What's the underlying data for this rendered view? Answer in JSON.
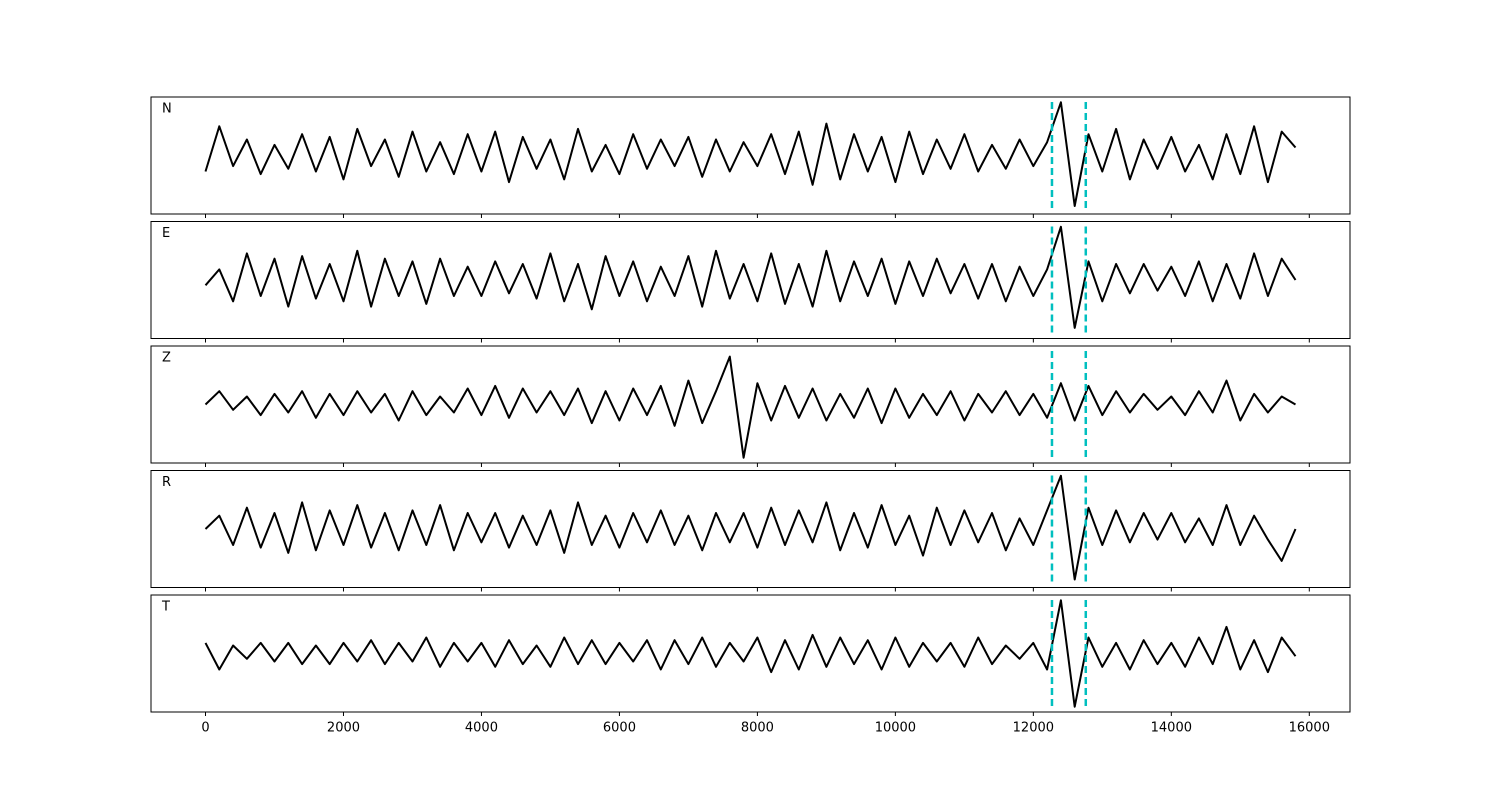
{
  "chart_data": {
    "type": "line",
    "layout": "stacked",
    "x": [
      0,
      200,
      400,
      600,
      800,
      1000,
      1200,
      1400,
      1600,
      1800,
      2000,
      2200,
      2400,
      2600,
      2800,
      3000,
      3200,
      3400,
      3600,
      3800,
      4000,
      4200,
      4400,
      4600,
      4800,
      5000,
      5200,
      5400,
      5600,
      5800,
      6000,
      6200,
      6400,
      6600,
      6800,
      7000,
      7200,
      7400,
      7600,
      7800,
      8000,
      8200,
      8400,
      8600,
      8800,
      9000,
      9200,
      9400,
      9600,
      9800,
      10000,
      10200,
      10400,
      10600,
      10800,
      11000,
      11200,
      11400,
      11600,
      11800,
      12000,
      12200,
      12400,
      12600,
      12800,
      13000,
      13200,
      13400,
      13600,
      13800,
      14000,
      14200,
      14400,
      14600,
      14800,
      15000,
      15200,
      15400,
      15600,
      15800
    ],
    "series": [
      {
        "name": "N",
        "values": [
          -0.3,
          0.55,
          -0.2,
          0.3,
          -0.35,
          0.2,
          -0.25,
          0.4,
          -0.3,
          0.35,
          -0.45,
          0.5,
          -0.2,
          0.3,
          -0.4,
          0.45,
          -0.3,
          0.25,
          -0.35,
          0.4,
          -0.3,
          0.45,
          -0.5,
          0.35,
          -0.25,
          0.3,
          -0.45,
          0.5,
          -0.3,
          0.2,
          -0.35,
          0.4,
          -0.25,
          0.3,
          -0.2,
          0.35,
          -0.4,
          0.3,
          -0.3,
          0.25,
          -0.2,
          0.4,
          -0.35,
          0.45,
          -0.55,
          0.6,
          -0.45,
          0.4,
          -0.3,
          0.35,
          -0.5,
          0.45,
          -0.35,
          0.3,
          -0.25,
          0.4,
          -0.3,
          0.2,
          -0.25,
          0.3,
          -0.2,
          0.25,
          1.0,
          -0.95,
          0.4,
          -0.3,
          0.5,
          -0.45,
          0.3,
          -0.25,
          0.35,
          -0.3,
          0.2,
          -0.45,
          0.4,
          -0.35,
          0.55,
          -0.5,
          0.45,
          0.15
        ]
      },
      {
        "name": "E",
        "values": [
          -0.1,
          0.2,
          -0.4,
          0.5,
          -0.3,
          0.4,
          -0.5,
          0.45,
          -0.35,
          0.3,
          -0.4,
          0.55,
          -0.5,
          0.4,
          -0.3,
          0.35,
          -0.45,
          0.4,
          -0.3,
          0.25,
          -0.3,
          0.35,
          -0.25,
          0.3,
          -0.35,
          0.5,
          -0.4,
          0.3,
          -0.55,
          0.45,
          -0.3,
          0.35,
          -0.4,
          0.25,
          -0.3,
          0.45,
          -0.5,
          0.55,
          -0.35,
          0.3,
          -0.4,
          0.5,
          -0.45,
          0.3,
          -0.5,
          0.55,
          -0.4,
          0.35,
          -0.3,
          0.4,
          -0.45,
          0.35,
          -0.3,
          0.4,
          -0.25,
          0.3,
          -0.35,
          0.3,
          -0.4,
          0.25,
          -0.3,
          0.2,
          1.0,
          -0.9,
          0.35,
          -0.4,
          0.3,
          -0.25,
          0.3,
          -0.2,
          0.25,
          -0.3,
          0.35,
          -0.4,
          0.3,
          -0.35,
          0.5,
          -0.3,
          0.4,
          0.0
        ]
      },
      {
        "name": "Z",
        "values": [
          0.0,
          0.25,
          -0.1,
          0.15,
          -0.2,
          0.2,
          -0.15,
          0.25,
          -0.25,
          0.2,
          -0.2,
          0.25,
          -0.15,
          0.2,
          -0.3,
          0.25,
          -0.2,
          0.15,
          -0.15,
          0.3,
          -0.2,
          0.35,
          -0.25,
          0.3,
          -0.15,
          0.25,
          -0.2,
          0.3,
          -0.35,
          0.25,
          -0.3,
          0.3,
          -0.2,
          0.35,
          -0.4,
          0.45,
          -0.35,
          0.25,
          0.9,
          -1.0,
          0.4,
          -0.3,
          0.35,
          -0.25,
          0.3,
          -0.3,
          0.2,
          -0.25,
          0.3,
          -0.35,
          0.3,
          -0.25,
          0.2,
          -0.2,
          0.25,
          -0.3,
          0.2,
          -0.15,
          0.25,
          -0.2,
          0.2,
          -0.25,
          0.4,
          -0.3,
          0.35,
          -0.2,
          0.25,
          -0.15,
          0.2,
          -0.1,
          0.15,
          -0.2,
          0.25,
          -0.15,
          0.45,
          -0.3,
          0.2,
          -0.15,
          0.15,
          0.0
        ]
      },
      {
        "name": "R",
        "values": [
          0.0,
          0.25,
          -0.3,
          0.4,
          -0.35,
          0.3,
          -0.45,
          0.5,
          -0.4,
          0.35,
          -0.3,
          0.45,
          -0.35,
          0.3,
          -0.4,
          0.35,
          -0.3,
          0.45,
          -0.4,
          0.3,
          -0.25,
          0.3,
          -0.35,
          0.25,
          -0.3,
          0.35,
          -0.45,
          0.5,
          -0.3,
          0.25,
          -0.35,
          0.3,
          -0.25,
          0.35,
          -0.3,
          0.25,
          -0.4,
          0.3,
          -0.25,
          0.3,
          -0.35,
          0.4,
          -0.3,
          0.35,
          -0.25,
          0.5,
          -0.4,
          0.3,
          -0.35,
          0.45,
          -0.3,
          0.25,
          -0.5,
          0.4,
          -0.3,
          0.35,
          -0.25,
          0.3,
          -0.4,
          0.2,
          -0.3,
          0.35,
          1.0,
          -0.95,
          0.4,
          -0.3,
          0.35,
          -0.25,
          0.3,
          -0.2,
          0.3,
          -0.25,
          0.2,
          -0.3,
          0.45,
          -0.3,
          0.25,
          -0.2,
          -0.6,
          0.0
        ]
      },
      {
        "name": "T",
        "values": [
          0.2,
          -0.3,
          0.15,
          -0.1,
          0.2,
          -0.15,
          0.2,
          -0.2,
          0.15,
          -0.2,
          0.2,
          -0.15,
          0.25,
          -0.2,
          0.2,
          -0.15,
          0.3,
          -0.25,
          0.2,
          -0.15,
          0.2,
          -0.25,
          0.25,
          -0.2,
          0.15,
          -0.25,
          0.3,
          -0.2,
          0.25,
          -0.2,
          0.2,
          -0.15,
          0.25,
          -0.3,
          0.25,
          -0.2,
          0.3,
          -0.25,
          0.2,
          -0.15,
          0.3,
          -0.35,
          0.25,
          -0.3,
          0.35,
          -0.25,
          0.3,
          -0.2,
          0.25,
          -0.3,
          0.3,
          -0.25,
          0.2,
          -0.15,
          0.2,
          -0.25,
          0.3,
          -0.2,
          0.15,
          -0.1,
          0.2,
          -0.3,
          1.0,
          -1.0,
          0.3,
          -0.25,
          0.2,
          -0.3,
          0.25,
          -0.2,
          0.2,
          -0.25,
          0.3,
          -0.2,
          0.5,
          -0.3,
          0.25,
          -0.35,
          0.3,
          -0.05
        ]
      }
    ],
    "color": "#000000",
    "markers": {
      "values": [
        12270,
        12760
      ],
      "color": "#00bfbf"
    },
    "xlim": [
      -790,
      16590
    ],
    "xticks": [
      0,
      2000,
      4000,
      6000,
      8000,
      10000,
      12000,
      14000,
      16000
    ],
    "ylim": [
      -1.1,
      1.1
    ]
  }
}
